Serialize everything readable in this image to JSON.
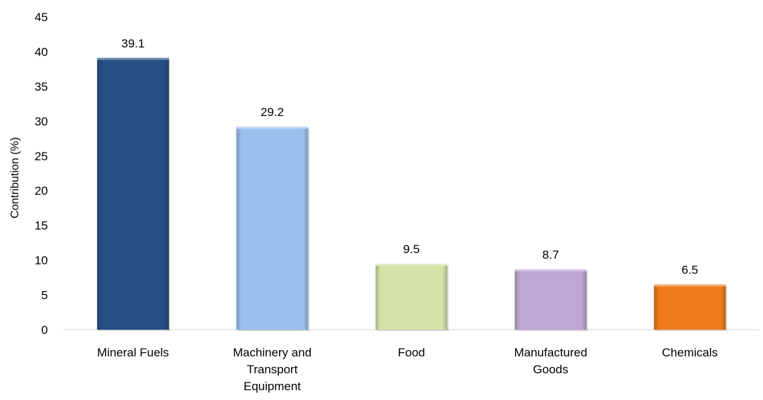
{
  "chart_data": {
    "type": "bar",
    "title": "",
    "xlabel": "",
    "ylabel": "Contribution (%)",
    "ylim": [
      0,
      45
    ],
    "y_ticks": [
      0,
      5,
      10,
      15,
      20,
      25,
      30,
      35,
      40,
      45
    ],
    "grid": false,
    "legend": "none",
    "categories": [
      [
        "Mineral Fuels"
      ],
      [
        "Machinery and",
        "Transport",
        "Equipment"
      ],
      [
        "Food"
      ],
      [
        "Manufactured",
        "Goods"
      ],
      [
        "Chemicals"
      ]
    ],
    "values": [
      39.1,
      29.2,
      9.5,
      8.7,
      6.5
    ],
    "data_labels": [
      "39.1",
      "29.2",
      "9.5",
      "8.7",
      "6.5"
    ],
    "colors": [
      "#264F84",
      "#9BC0EE",
      "#D4E4A9",
      "#BDA8D4",
      "#EF7A1A"
    ]
  }
}
